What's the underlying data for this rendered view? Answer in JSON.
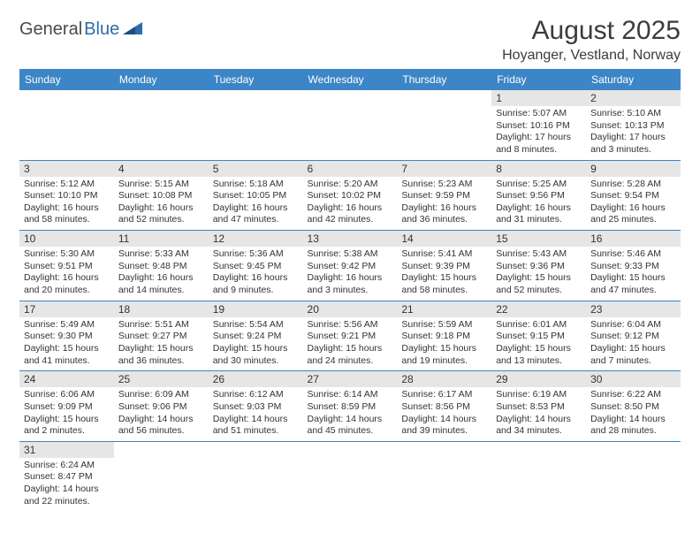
{
  "logo": {
    "general": "General",
    "blue": "Blue"
  },
  "title": "August 2025",
  "location": "Hoyanger, Vestland, Norway",
  "colors": {
    "header_bg": "#3c85c6",
    "header_text": "#ffffff",
    "daynum_bg": "#e6e6e6",
    "rule": "#3c85c6",
    "text": "#333333",
    "logo_blue": "#2f6ca8"
  },
  "weekdays": [
    "Sunday",
    "Monday",
    "Tuesday",
    "Wednesday",
    "Thursday",
    "Friday",
    "Saturday"
  ],
  "weeks": [
    [
      null,
      null,
      null,
      null,
      null,
      {
        "n": "1",
        "sr": "5:07 AM",
        "ss": "10:16 PM",
        "dl": "17 hours and 8 minutes."
      },
      {
        "n": "2",
        "sr": "5:10 AM",
        "ss": "10:13 PM",
        "dl": "17 hours and 3 minutes."
      }
    ],
    [
      {
        "n": "3",
        "sr": "5:12 AM",
        "ss": "10:10 PM",
        "dl": "16 hours and 58 minutes."
      },
      {
        "n": "4",
        "sr": "5:15 AM",
        "ss": "10:08 PM",
        "dl": "16 hours and 52 minutes."
      },
      {
        "n": "5",
        "sr": "5:18 AM",
        "ss": "10:05 PM",
        "dl": "16 hours and 47 minutes."
      },
      {
        "n": "6",
        "sr": "5:20 AM",
        "ss": "10:02 PM",
        "dl": "16 hours and 42 minutes."
      },
      {
        "n": "7",
        "sr": "5:23 AM",
        "ss": "9:59 PM",
        "dl": "16 hours and 36 minutes."
      },
      {
        "n": "8",
        "sr": "5:25 AM",
        "ss": "9:56 PM",
        "dl": "16 hours and 31 minutes."
      },
      {
        "n": "9",
        "sr": "5:28 AM",
        "ss": "9:54 PM",
        "dl": "16 hours and 25 minutes."
      }
    ],
    [
      {
        "n": "10",
        "sr": "5:30 AM",
        "ss": "9:51 PM",
        "dl": "16 hours and 20 minutes."
      },
      {
        "n": "11",
        "sr": "5:33 AM",
        "ss": "9:48 PM",
        "dl": "16 hours and 14 minutes."
      },
      {
        "n": "12",
        "sr": "5:36 AM",
        "ss": "9:45 PM",
        "dl": "16 hours and 9 minutes."
      },
      {
        "n": "13",
        "sr": "5:38 AM",
        "ss": "9:42 PM",
        "dl": "16 hours and 3 minutes."
      },
      {
        "n": "14",
        "sr": "5:41 AM",
        "ss": "9:39 PM",
        "dl": "15 hours and 58 minutes."
      },
      {
        "n": "15",
        "sr": "5:43 AM",
        "ss": "9:36 PM",
        "dl": "15 hours and 52 minutes."
      },
      {
        "n": "16",
        "sr": "5:46 AM",
        "ss": "9:33 PM",
        "dl": "15 hours and 47 minutes."
      }
    ],
    [
      {
        "n": "17",
        "sr": "5:49 AM",
        "ss": "9:30 PM",
        "dl": "15 hours and 41 minutes."
      },
      {
        "n": "18",
        "sr": "5:51 AM",
        "ss": "9:27 PM",
        "dl": "15 hours and 36 minutes."
      },
      {
        "n": "19",
        "sr": "5:54 AM",
        "ss": "9:24 PM",
        "dl": "15 hours and 30 minutes."
      },
      {
        "n": "20",
        "sr": "5:56 AM",
        "ss": "9:21 PM",
        "dl": "15 hours and 24 minutes."
      },
      {
        "n": "21",
        "sr": "5:59 AM",
        "ss": "9:18 PM",
        "dl": "15 hours and 19 minutes."
      },
      {
        "n": "22",
        "sr": "6:01 AM",
        "ss": "9:15 PM",
        "dl": "15 hours and 13 minutes."
      },
      {
        "n": "23",
        "sr": "6:04 AM",
        "ss": "9:12 PM",
        "dl": "15 hours and 7 minutes."
      }
    ],
    [
      {
        "n": "24",
        "sr": "6:06 AM",
        "ss": "9:09 PM",
        "dl": "15 hours and 2 minutes."
      },
      {
        "n": "25",
        "sr": "6:09 AM",
        "ss": "9:06 PM",
        "dl": "14 hours and 56 minutes."
      },
      {
        "n": "26",
        "sr": "6:12 AM",
        "ss": "9:03 PM",
        "dl": "14 hours and 51 minutes."
      },
      {
        "n": "27",
        "sr": "6:14 AM",
        "ss": "8:59 PM",
        "dl": "14 hours and 45 minutes."
      },
      {
        "n": "28",
        "sr": "6:17 AM",
        "ss": "8:56 PM",
        "dl": "14 hours and 39 minutes."
      },
      {
        "n": "29",
        "sr": "6:19 AM",
        "ss": "8:53 PM",
        "dl": "14 hours and 34 minutes."
      },
      {
        "n": "30",
        "sr": "6:22 AM",
        "ss": "8:50 PM",
        "dl": "14 hours and 28 minutes."
      }
    ],
    [
      {
        "n": "31",
        "sr": "6:24 AM",
        "ss": "8:47 PM",
        "dl": "14 hours and 22 minutes."
      },
      null,
      null,
      null,
      null,
      null,
      null
    ]
  ],
  "labels": {
    "sunrise": "Sunrise:",
    "sunset": "Sunset:",
    "daylight": "Daylight:"
  }
}
